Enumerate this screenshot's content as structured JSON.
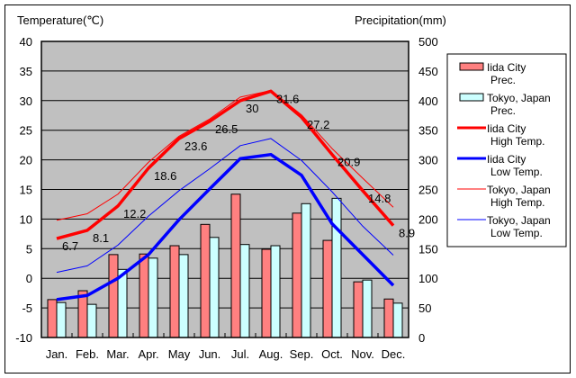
{
  "chart_data": {
    "type": "bar+line",
    "title": "",
    "categories": [
      "Jan.",
      "Feb.",
      "Mar.",
      "Apr.",
      "May",
      "Jun.",
      "Jul.",
      "Aug.",
      "Sep.",
      "Oct.",
      "Nov.",
      "Dec."
    ],
    "left_axis": {
      "label": "Temperature(℃)",
      "range": [
        -10,
        40
      ],
      "ticks": [
        40,
        35,
        30,
        25,
        20,
        15,
        10,
        5,
        0,
        -5,
        -10
      ]
    },
    "right_axis": {
      "label": "Precipitation(mm)",
      "range": [
        0,
        500
      ],
      "ticks": [
        500,
        450,
        400,
        350,
        300,
        250,
        200,
        150,
        100,
        50,
        0
      ]
    },
    "grid": true,
    "legend_position": "right",
    "series": [
      {
        "name": "Iida City Prec.",
        "legend": [
          "Iida City",
          "Prec."
        ],
        "kind": "bar",
        "axis": "right",
        "color": "#ff8080",
        "values": [
          64,
          79,
          140,
          141,
          155,
          191,
          242,
          149,
          210,
          164,
          94,
          65
        ]
      },
      {
        "name": "Tokyo, Japan Prec.",
        "legend": [
          "Tokyo, Japan",
          "Prec."
        ],
        "kind": "bar",
        "axis": "right",
        "color": "#ccffff",
        "values": [
          59,
          56,
          115,
          134,
          140,
          169,
          157,
          155,
          226,
          235,
          97,
          58
        ]
      },
      {
        "name": "Iida City High Temp.",
        "legend": [
          "Iida City",
          "High Temp."
        ],
        "kind": "line",
        "axis": "left",
        "color": "#ff0000",
        "weight": "bold",
        "values": [
          6.7,
          8.1,
          12.2,
          18.6,
          23.6,
          26.5,
          30.0,
          31.6,
          27.2,
          20.9,
          14.8,
          8.9
        ],
        "labels": [
          "6.7",
          "8.1",
          "12.2",
          "18.6",
          "23.6",
          "26.5",
          "30",
          "31.6",
          "27.2",
          "20.9",
          "14.8",
          "8.9"
        ]
      },
      {
        "name": "Iida City Low Temp.",
        "legend": [
          "Iida City",
          "Low Temp."
        ],
        "kind": "line",
        "axis": "left",
        "color": "#0000ff",
        "weight": "bold",
        "values": [
          -3.6,
          -2.9,
          0.0,
          4.0,
          9.9,
          15.1,
          20.2,
          20.9,
          17.4,
          9.2,
          4.0,
          -1.2
        ]
      },
      {
        "name": "Tokyo, Japan High Temp.",
        "legend": [
          "Tokyo, Japan",
          "High Temp."
        ],
        "kind": "line",
        "axis": "left",
        "color": "#ff0000",
        "weight": "thin",
        "values": [
          9.8,
          10.9,
          14.2,
          19.6,
          24.0,
          26.9,
          30.6,
          31.7,
          27.6,
          21.9,
          16.9,
          12.0
        ]
      },
      {
        "name": "Tokyo, Japan Low Temp.",
        "legend": [
          "Tokyo, Japan",
          "Low Temp."
        ],
        "kind": "line",
        "axis": "left",
        "color": "#0000ff",
        "weight": "thin",
        "values": [
          1.0,
          2.1,
          5.6,
          10.5,
          14.8,
          18.5,
          22.4,
          23.6,
          19.9,
          14.6,
          8.8,
          3.9
        ]
      }
    ]
  },
  "colors": {
    "plot_background": "#c0c0c0",
    "grid": "#000000"
  }
}
